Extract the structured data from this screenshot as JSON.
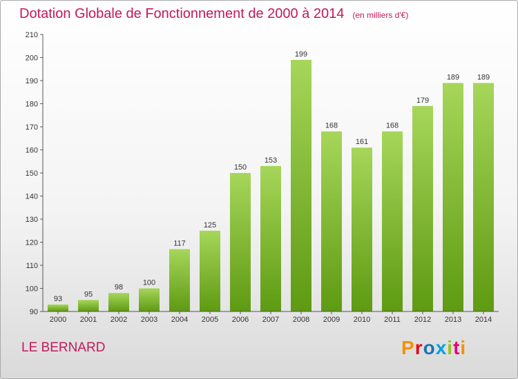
{
  "title": "Dotation Globale de Fonctionnement de 2000 à 2014",
  "subtitle": "(en milliers d'€)",
  "place": "LE BERNARD",
  "logo": {
    "text": "Proxiti",
    "colors": [
      "#f39200",
      "#e30613",
      "#1d71b8",
      "#009fe3",
      "#95c11f",
      "#e6007e",
      "#f39200"
    ]
  },
  "colors": {
    "accent": "#c2185b",
    "bar_light": "#a6d65a",
    "bar_dark": "#5e9a12"
  },
  "chart_data": {
    "type": "bar",
    "title": "Dotation Globale de Fonctionnement de 2000 à 2014",
    "subtitle": "(en milliers d'€)",
    "xlabel": "",
    "ylabel": "",
    "ylim": [
      90,
      210
    ],
    "yticks": [
      90,
      100,
      110,
      120,
      130,
      140,
      150,
      160,
      170,
      180,
      190,
      200,
      210
    ],
    "grid": false,
    "categories": [
      "2000",
      "2001",
      "2002",
      "2003",
      "2004",
      "2005",
      "2006",
      "2007",
      "2008",
      "2009",
      "2010",
      "2011",
      "2012",
      "2013",
      "2014"
    ],
    "values": [
      93,
      95,
      98,
      100,
      117,
      125,
      150,
      153,
      199,
      168,
      161,
      168,
      179,
      189,
      189
    ]
  }
}
